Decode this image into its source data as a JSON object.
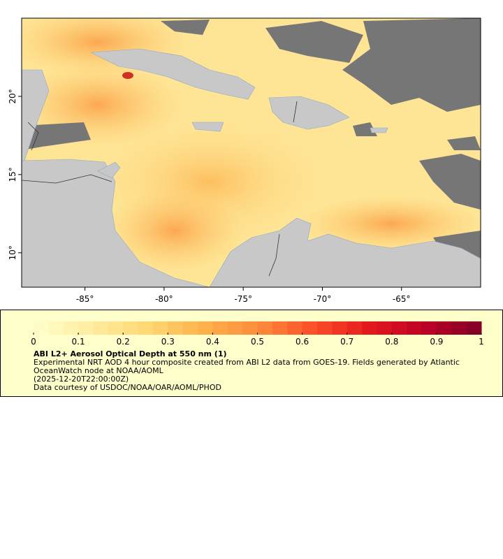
{
  "map": {
    "xlim": [
      -89,
      -60
    ],
    "ylim": [
      7.8,
      25
    ],
    "xticks": [
      {
        "value": -85,
        "label": "-85°"
      },
      {
        "value": -80,
        "label": "-80°"
      },
      {
        "value": -75,
        "label": "-75°"
      },
      {
        "value": -70,
        "label": "-70°"
      },
      {
        "value": -65,
        "label": "-65°"
      }
    ],
    "yticks": [
      {
        "value": 10,
        "label": "10°"
      },
      {
        "value": 15,
        "label": "15°"
      },
      {
        "value": 20,
        "label": "20°"
      }
    ]
  },
  "colorbar": {
    "lim": [
      0,
      1
    ],
    "ticks": [
      0,
      0.1,
      0.2,
      0.3,
      0.4,
      0.5,
      0.6,
      0.7,
      0.8,
      0.9,
      1
    ],
    "colormap": [
      "#ffffcc",
      "#ffeda0",
      "#fed976",
      "#feb24c",
      "#fd8d3c",
      "#fc4e2a",
      "#e31a1c",
      "#bd0026",
      "#800026"
    ],
    "title": "ABI L2+ Aerosol Optical Depth at 550 nm (1)",
    "description": "Experimental NRT AOD 4 hour composite created from ABI L2 data from GOES-19. Fields generated by Atlantic OceanWatch node at NOAA/AOML",
    "time": "(2025-12-20T22:00:00Z)",
    "credit": "Data courtesy of USDOC/NOAA/OAR/AOML/PHOD"
  }
}
